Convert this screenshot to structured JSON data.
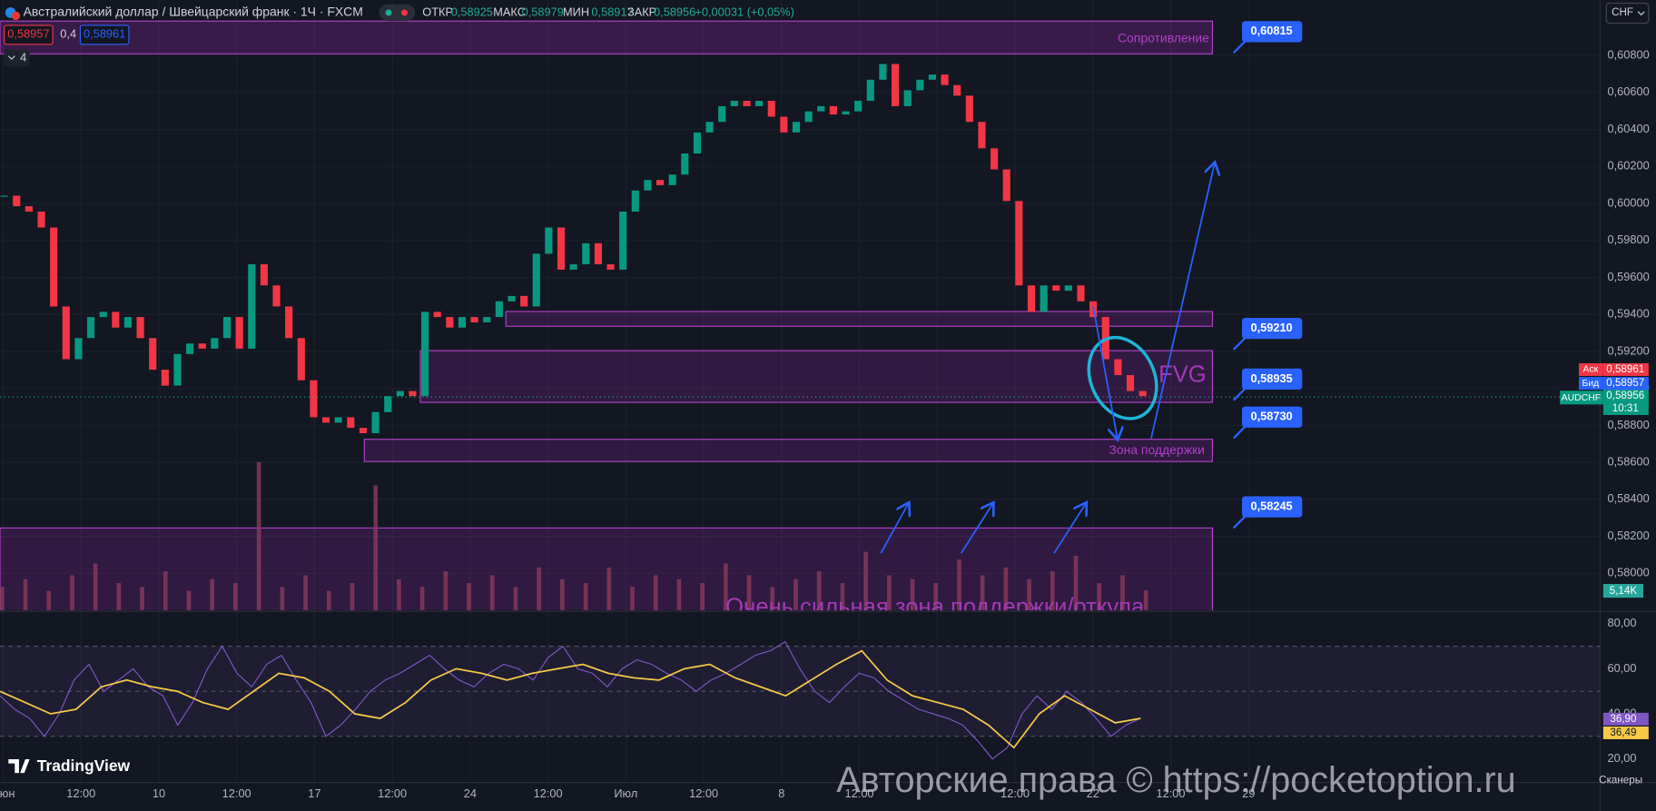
{
  "header": {
    "open_label": "ОТКР",
    "open": "0,58925",
    "high_label": "МАКС",
    "high": "0,58979",
    "low_label": "МИН",
    "low": "0,58917",
    "close_label": "ЗАКР",
    "close": "0,58956",
    "change": "+0,00031 (+0,05%)"
  },
  "quote": {
    "sell": "0,58957",
    "spread": "0,4",
    "buy": "0,58961"
  },
  "indicators_count": "4",
  "currency": "CHF",
  "annotations": {
    "resistance": "Сопротивление",
    "fvg": "FVG",
    "support": "Зона поддержки",
    "strong_support": "Очень сильная зона поддержки/откупа"
  },
  "price_labels": [
    "0,60815",
    "0,59210",
    "0,58935",
    "0,58730",
    "0,58245"
  ],
  "right_labels": {
    "ask_label": "Аск",
    "ask": "0,58961",
    "bid_label": "Бид",
    "bid": "0,58957",
    "symbol": "AUDCHF",
    "last": "0,58956",
    "countdown": "10:31"
  },
  "branding": "TradingView",
  "watermark": "Авторские права © https://pocketoption.ru",
  "scanners": "Сканеры",
  "chart_data": {
    "type": "candlestick",
    "title": "Австралийский доллар / Швейцарский франк · 1Ч · FXCM",
    "values": [
      0.60042,
      0.59985,
      0.59956,
      0.5987,
      0.59443,
      0.59158,
      0.59272,
      0.59386,
      0.59414,
      0.59329,
      0.59386,
      0.59272,
      0.59101,
      0.59015,
      0.59186,
      0.59243,
      0.59215,
      0.59272,
      0.59386,
      0.59215,
      0.59671,
      0.59557,
      0.59443,
      0.59272,
      0.59044,
      0.58844,
      0.58815,
      0.58844,
      0.58787,
      0.58758,
      0.58872,
      0.58958,
      0.58986,
      0.58958,
      0.59414,
      0.59386,
      0.59329,
      0.59386,
      0.59357,
      0.59386,
      0.59471,
      0.595,
      0.59443,
      0.59728,
      0.5987,
      0.59642,
      0.59671,
      0.59785,
      0.59671,
      0.59642,
      0.59956,
      0.6007,
      0.60127,
      0.60099,
      0.60156,
      0.6027,
      0.60384,
      0.60441,
      0.60526,
      0.60555,
      0.60526,
      0.60555,
      0.60469,
      0.60384,
      0.60441,
      0.60498,
      0.60526,
      0.60481,
      0.60498,
      0.60555,
      0.60669,
      0.60754,
      0.60526,
      0.60612,
      0.60669,
      0.60697,
      0.6064,
      0.60583,
      0.60441,
      0.60298,
      0.60184,
      0.60013,
      0.59557,
      0.59414,
      0.59557,
      0.59528,
      0.59557,
      0.59471,
      0.59386,
      0.59158,
      0.59072,
      0.58986,
      0.58958
    ],
    "up_color": "#089981",
    "down_color": "#f23645",
    "ylim": [
      0.578,
      0.611
    ],
    "yticks": [
      {
        "value": 0.608,
        "label": "0,60800"
      },
      {
        "value": 0.606,
        "label": "0,60600"
      },
      {
        "value": 0.604,
        "label": "0,60400"
      },
      {
        "value": 0.602,
        "label": "0,60200"
      },
      {
        "value": 0.6,
        "label": "0,60000"
      },
      {
        "value": 0.598,
        "label": "0,59800"
      },
      {
        "value": 0.596,
        "label": "0,59600"
      },
      {
        "value": 0.594,
        "label": "0,59400"
      },
      {
        "value": 0.592,
        "label": "0,59200"
      },
      {
        "value": 0.59,
        "label": "0,59000"
      },
      {
        "value": 0.588,
        "label": "0,58800"
      },
      {
        "value": 0.586,
        "label": "0,58600"
      },
      {
        "value": 0.584,
        "label": "0,58400"
      },
      {
        "value": 0.582,
        "label": "0,58200"
      },
      {
        "value": 0.58,
        "label": "0,58000"
      }
    ],
    "x_labels": [
      "Июн",
      "12:00",
      "10",
      "12:00",
      "17",
      "12:00",
      "24",
      "12:00",
      "Июл",
      "12:00",
      "8",
      "12:00",
      null,
      "12:00",
      "22",
      "12:00",
      "29"
    ],
    "grid": true,
    "volume": {
      "values": [
        6,
        8,
        5,
        9,
        12,
        7,
        6,
        10,
        5,
        8,
        7,
        38,
        6,
        9,
        5,
        7,
        32,
        8,
        6,
        10,
        7,
        9,
        6,
        11,
        8,
        7,
        11,
        6,
        9,
        8,
        7,
        12,
        9,
        6,
        8,
        10,
        7,
        15,
        9,
        8,
        7,
        13,
        9,
        11,
        8,
        10,
        14,
        7,
        9,
        5.14
      ],
      "color": "#8a3a5c",
      "last": {
        "value": 5.14,
        "label": "5,14K"
      }
    },
    "rsi": {
      "values": [
        48,
        42,
        38,
        30,
        40,
        55,
        62,
        50,
        55,
        60,
        52,
        48,
        35,
        45,
        60,
        70,
        58,
        52,
        62,
        66,
        55,
        45,
        30,
        35,
        42,
        50,
        55,
        58,
        62,
        66,
        60,
        55,
        52,
        58,
        62,
        60,
        55,
        65,
        70,
        60,
        58,
        52,
        60,
        64,
        62,
        58,
        55,
        50,
        55,
        58,
        62,
        66,
        68,
        72,
        60,
        50,
        45,
        52,
        58,
        56,
        50,
        46,
        42,
        40,
        38,
        35,
        28,
        20,
        25,
        40,
        48,
        42,
        50,
        45,
        38,
        30,
        35,
        38
      ],
      "ma": [
        50,
        45,
        40,
        42,
        52,
        55,
        52,
        50,
        45,
        42,
        50,
        58,
        56,
        50,
        40,
        38,
        45,
        55,
        60,
        58,
        55,
        58,
        60,
        62,
        58,
        56,
        55,
        60,
        62,
        56,
        52,
        48,
        55,
        62,
        68,
        55,
        48,
        45,
        42,
        35,
        25,
        40,
        48,
        42,
        36,
        38
      ],
      "color": "#7e57c2",
      "ma_color": "#f7c948",
      "ylim": [
        10,
        85
      ],
      "yticks": [
        {
          "value": 80,
          "label": "80,00"
        },
        {
          "value": 60,
          "label": "60,00"
        },
        {
          "value": 40,
          "label": "40,00"
        },
        {
          "value": 20,
          "label": "20,00"
        }
      ],
      "levels": [
        70,
        50,
        30
      ],
      "last": "36,90",
      "ma_last": "36,49"
    }
  }
}
